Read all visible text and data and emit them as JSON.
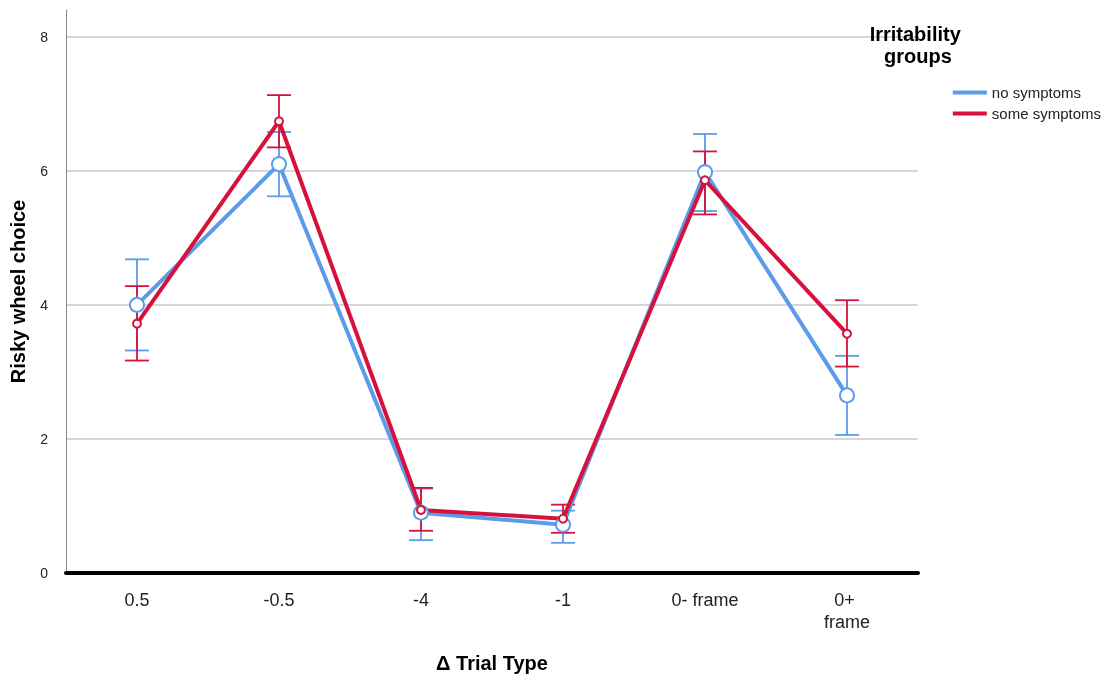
{
  "chart_data": {
    "type": "line",
    "xlabel": "Δ Trial Type",
    "ylabel": "Risky wheel choice",
    "legend_title": "Irritability groups",
    "categories": [
      "0.5",
      "-0.5",
      "-4",
      "-1",
      "0- frame",
      "0+ frame"
    ],
    "series": [
      {
        "name": "no symptoms",
        "color": "#5b9bea",
        "values": [
          4.0,
          6.1,
          0.9,
          0.72,
          5.98,
          2.65
        ],
        "errors": [
          [
            3.32,
            4.68
          ],
          [
            5.62,
            6.58
          ],
          [
            0.49,
            1.26
          ],
          [
            0.45,
            0.93
          ],
          [
            5.4,
            6.55
          ],
          [
            2.06,
            3.24
          ]
        ]
      },
      {
        "name": "some symptoms",
        "color": "#d6123c",
        "values": [
          3.72,
          6.74,
          0.94,
          0.81,
          5.86,
          3.57
        ],
        "errors": [
          [
            3.17,
            4.28
          ],
          [
            6.35,
            7.13
          ],
          [
            0.63,
            1.27
          ],
          [
            0.6,
            1.02
          ],
          [
            5.35,
            6.29
          ],
          [
            3.08,
            4.07
          ]
        ]
      }
    ],
    "ylim": [
      0,
      8.4
    ],
    "yticks": [
      0,
      2,
      4,
      6,
      8
    ],
    "grid": "y",
    "legend": "top right",
    "marker": "circle",
    "line_style": "solid"
  }
}
